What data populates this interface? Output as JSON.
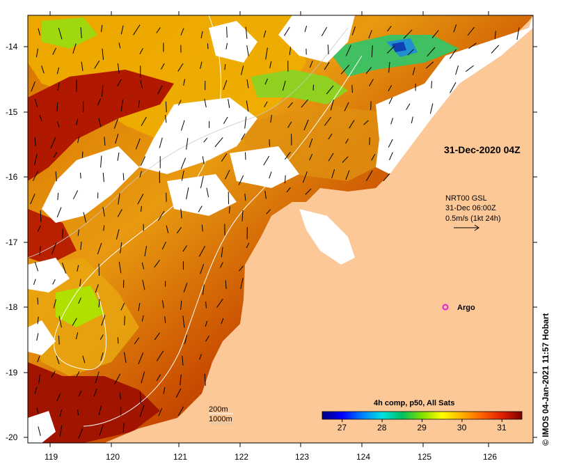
{
  "map": {
    "lon_ticks": [
      "119",
      "120",
      "121",
      "122",
      "123",
      "124",
      "125",
      "126"
    ],
    "lat_ticks": [
      "-14",
      "-15",
      "-16",
      "-17",
      "-18",
      "-19",
      "-20"
    ],
    "lon_range": [
      118.65,
      126.75
    ],
    "lat_range": [
      -20.1,
      -13.55
    ],
    "land_color": "#fcc898",
    "cloud_color": "#ffffff"
  },
  "annotations": {
    "timestamp": "31-Dec-2020 04Z",
    "current_source": "NRT00 GSL",
    "current_time": "31-Dec 06:00Z",
    "current_scale": "0.5m/s (1kt 24h)",
    "argo_label": "Argo",
    "isobath_200": "200m",
    "isobath_1000": "1000m"
  },
  "colorbar": {
    "title": "4h comp, p50, All Sats",
    "ticks": [
      "27",
      "28",
      "29",
      "30",
      "31"
    ],
    "range": [
      26.5,
      31.5
    ],
    "colors": [
      "#00007f",
      "#0000ff",
      "#0080ff",
      "#00e0e0",
      "#00c060",
      "#80e000",
      "#ffff00",
      "#ffb000",
      "#ff6000",
      "#e02000",
      "#800000"
    ]
  },
  "credit": "© IMOS 04-Jan-2021 11:57 Hobart",
  "argo_color": "#e020e0"
}
